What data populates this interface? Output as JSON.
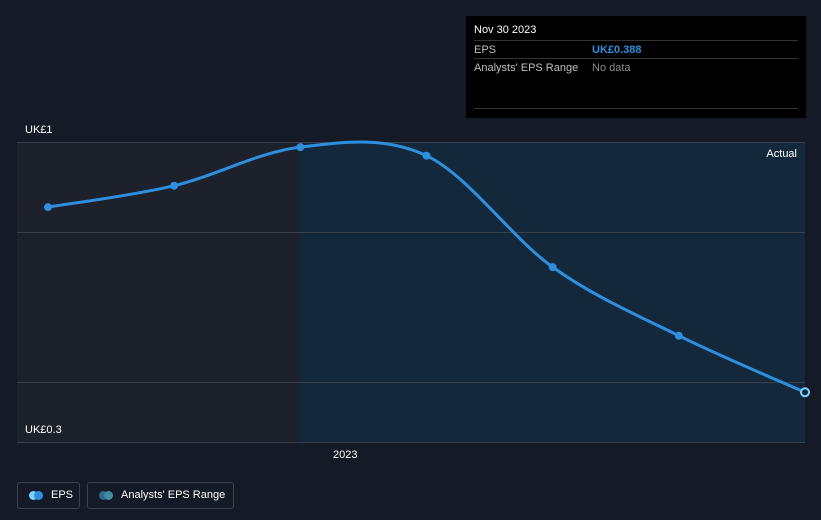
{
  "tooltip": {
    "date": "Nov 30 2023",
    "rows": [
      {
        "label": "EPS",
        "value": "UK£0.388"
      },
      {
        "label": "Analysts' EPS Range",
        "value": "No data"
      }
    ]
  },
  "legend": [
    {
      "label": "EPS",
      "color": "#2f8fdf"
    },
    {
      "label": "Analysts' EPS Range",
      "color": "#2f8fdf"
    }
  ],
  "colors": {
    "background": "#151b26",
    "past_region": "#1c212b",
    "forecast_region": "#14283c",
    "line": "#2f8fdf",
    "grid": "#39404c"
  },
  "chart_data": {
    "type": "line",
    "y_labels": {
      "top": "UK£1",
      "bottom": "UK£0.3"
    },
    "ylim": [
      0.3,
      1.0
    ],
    "x_tick_labels": [
      "2023"
    ],
    "region_label": "Actual",
    "grid": true,
    "series": [
      {
        "name": "EPS",
        "x": [
          "2022-05-31",
          "2022-08-31",
          "2022-11-30",
          "2023-02-28",
          "2023-05-31",
          "2023-08-31",
          "2023-11-30"
        ],
        "values": [
          0.82,
          0.87,
          0.96,
          0.94,
          0.68,
          0.52,
          0.388
        ]
      }
    ]
  }
}
